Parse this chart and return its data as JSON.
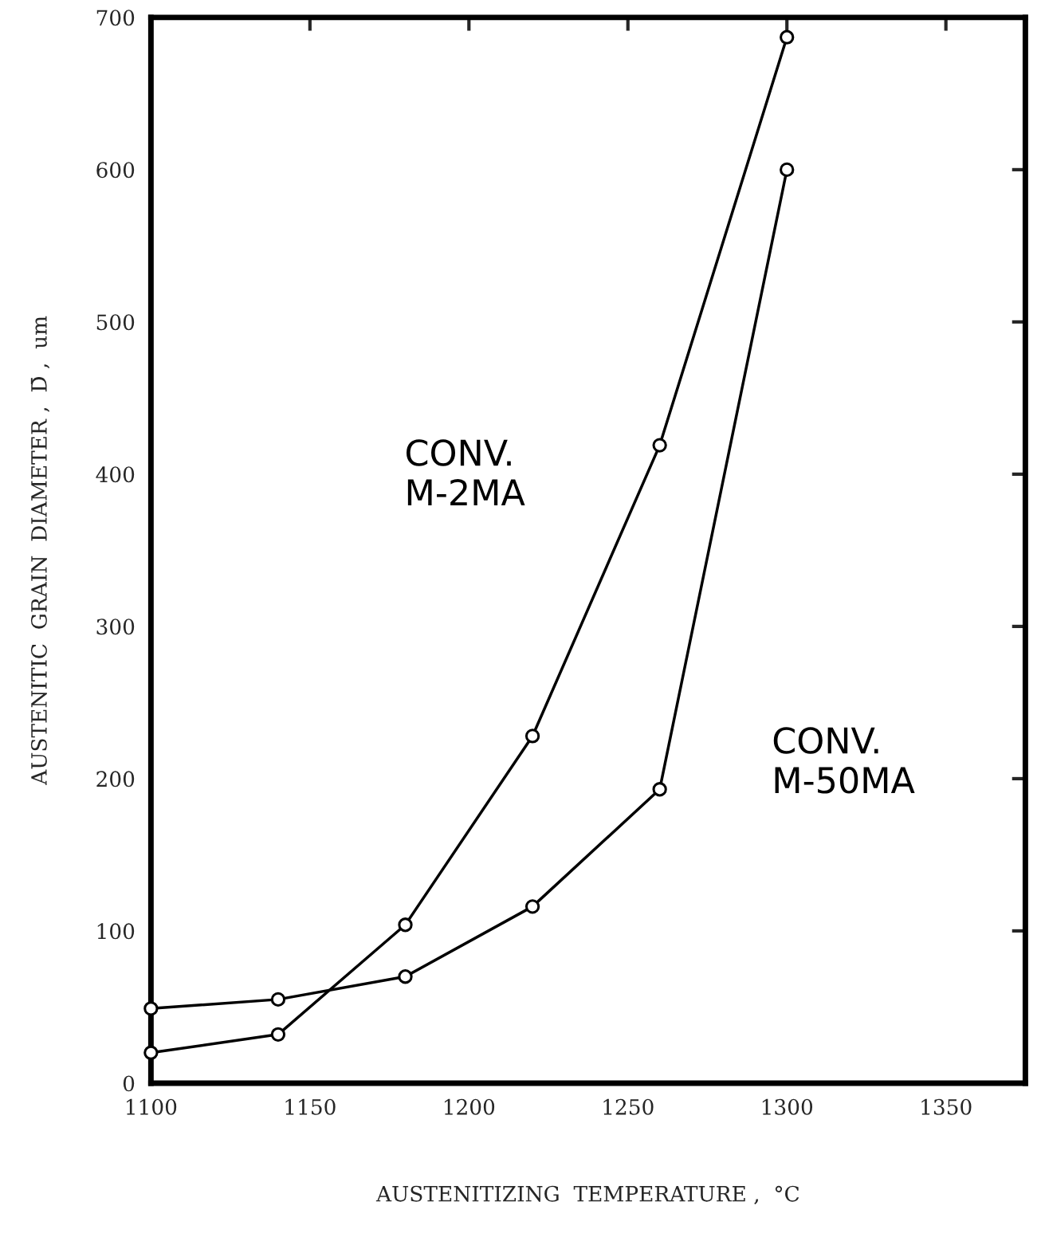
{
  "chart_data": {
    "type": "line",
    "xlabel": "AUSTENITIZING  TEMPERATURE ,  °C",
    "ylabel": "AUSTENITIC  GRAIN  DIAMETER ,  D̄ ,  um",
    "series": [
      {
        "name": "CONV.\nM-2MA",
        "color": "#000000",
        "x": [
          1100,
          1140,
          1180,
          1220,
          1260,
          1300
        ],
        "values": [
          20,
          32,
          104,
          228,
          419,
          687
        ]
      },
      {
        "name": "CONV.\nM-50MA",
        "color": "#000000",
        "x": [
          1100,
          1140,
          1180,
          1220,
          1260,
          1300
        ],
        "values": [
          49,
          55,
          70,
          116,
          193,
          600
        ]
      }
    ],
    "xlim": [
      1100,
      1375
    ],
    "ylim": [
      0,
      700
    ],
    "xticks": [
      1100,
      1150,
      1200,
      1250,
      1300,
      1350
    ],
    "yticks": [
      0,
      100,
      200,
      300,
      400,
      500,
      600,
      700
    ],
    "marker": "circle",
    "line_style": "solid",
    "grid": false,
    "legend": false
  }
}
